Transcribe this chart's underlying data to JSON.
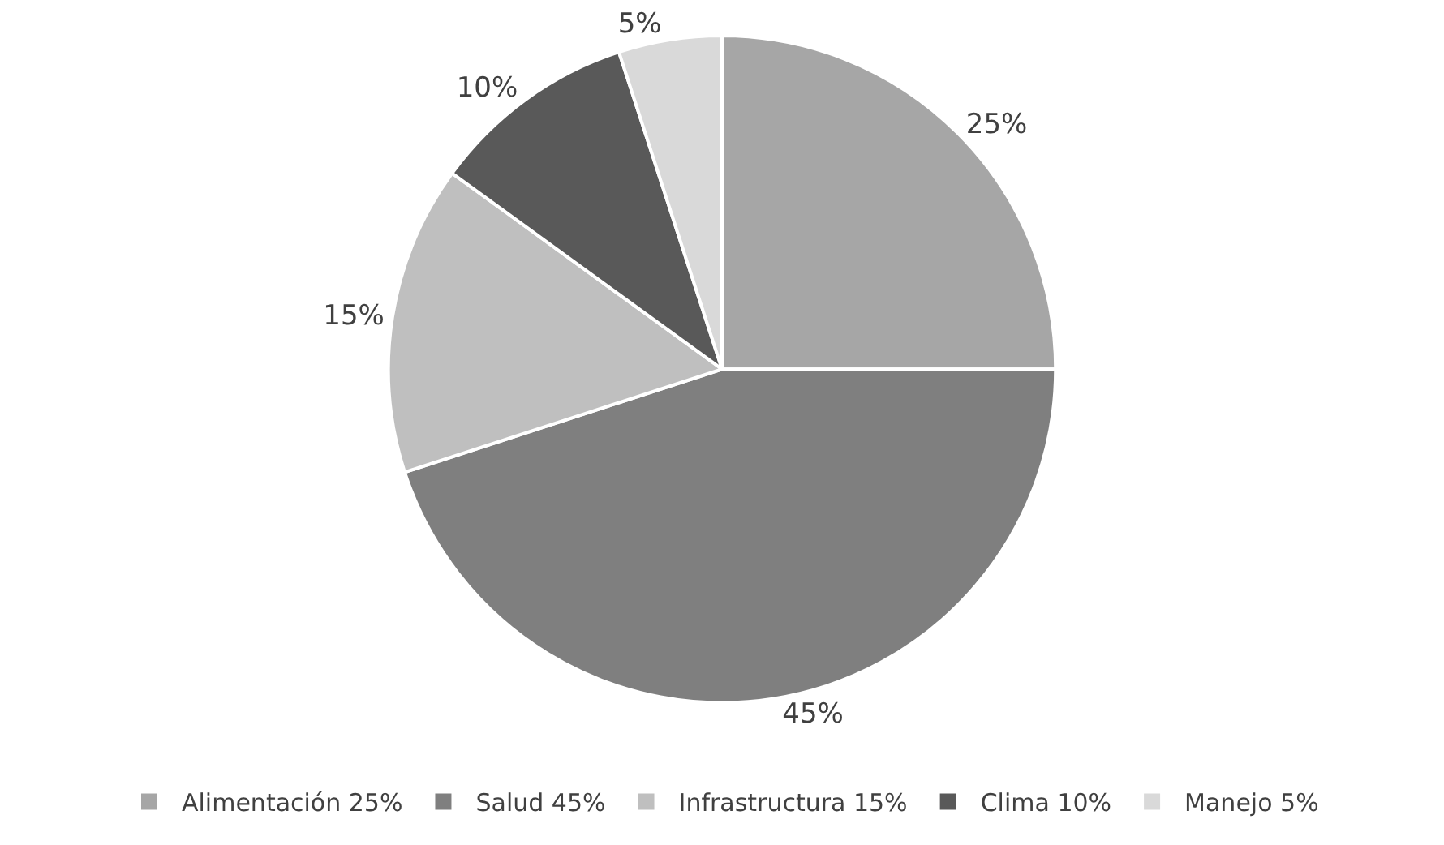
{
  "chart_data": {
    "type": "pie",
    "categories": [
      "Alimentación 25%",
      "Salud 45%",
      "Infrastructura 15%",
      "Clima 10%",
      "Manejo 5%"
    ],
    "values": [
      25,
      45,
      15,
      10,
      5
    ],
    "value_labels": [
      "25%",
      "45%",
      "15%",
      "10%",
      "5%"
    ],
    "colors": [
      "#a6a6a6",
      "#7f7f7f",
      "#bfbfbf",
      "#595959",
      "#d9d9d9"
    ],
    "legend": "bottom"
  }
}
